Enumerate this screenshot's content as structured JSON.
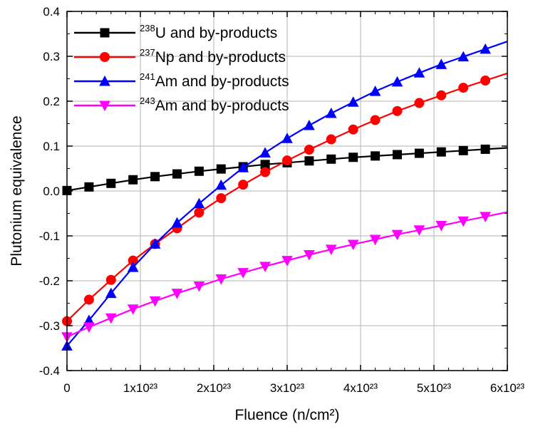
{
  "chart_data": {
    "type": "line",
    "title": "",
    "xlabel": "Fluence (n/cm²)",
    "ylabel": "Plutonium equivalence",
    "xlim": [
      0,
      6e+23
    ],
    "ylim": [
      -0.4,
      0.4
    ],
    "grid": true,
    "legend_position": "top-left",
    "x_ticks": [
      {
        "value": 0,
        "label": "0"
      },
      {
        "value": 1e+23,
        "label": "1x10²³"
      },
      {
        "value": 2e+23,
        "label": "2x10²³"
      },
      {
        "value": 3e+23,
        "label": "3x10²³"
      },
      {
        "value": 4e+23,
        "label": "4x10²³"
      },
      {
        "value": 5e+23,
        "label": "5x10²³"
      },
      {
        "value": 6e+23,
        "label": "6x10²³"
      }
    ],
    "y_ticks": [
      {
        "value": -0.4,
        "label": "-0.4"
      },
      {
        "value": -0.3,
        "label": "-0.3"
      },
      {
        "value": -0.2,
        "label": "-0.2"
      },
      {
        "value": -0.1,
        "label": "-0.1"
      },
      {
        "value": 0.0,
        "label": "0.0"
      },
      {
        "value": 0.1,
        "label": "0.1"
      },
      {
        "value": 0.2,
        "label": "0.2"
      },
      {
        "value": 0.3,
        "label": "0.3"
      },
      {
        "value": 0.4,
        "label": "0.4"
      }
    ],
    "x": [
      0,
      3e+22,
      6e+22,
      9e+22,
      1.2e+23,
      1.5e+23,
      1.8e+23,
      2.1e+23,
      2.4e+23,
      2.7e+23,
      3e+23,
      3.3e+23,
      3.6e+23,
      3.9e+23,
      4.2e+23,
      4.5e+23,
      4.8e+23,
      5.1e+23,
      5.4e+23,
      5.7e+23
    ],
    "series": [
      {
        "name": "²³⁸U and by-products",
        "sup": "238",
        "label_rest": "U and by-products",
        "color": "#000000",
        "marker": "square",
        "values": [
          0.001,
          0.009,
          0.017,
          0.025,
          0.032,
          0.038,
          0.044,
          0.049,
          0.054,
          0.059,
          0.063,
          0.067,
          0.071,
          0.075,
          0.078,
          0.081,
          0.084,
          0.087,
          0.09,
          0.093
        ]
      },
      {
        "name": "²³⁷Np and by-products",
        "sup": "237",
        "label_rest": "Np and by-products",
        "color": "#ff0000",
        "marker": "circle",
        "values": [
          -0.29,
          -0.242,
          -0.198,
          -0.155,
          -0.118,
          -0.083,
          -0.048,
          -0.016,
          0.014,
          0.042,
          0.068,
          0.092,
          0.115,
          0.137,
          0.158,
          0.178,
          0.196,
          0.213,
          0.23,
          0.246
        ]
      },
      {
        "name": "²⁴¹Am and by-products",
        "sup": "241",
        "label_rest": "Am and by-products",
        "color": "#0000ff",
        "marker": "triangle-up",
        "values": [
          -0.345,
          -0.288,
          -0.228,
          -0.17,
          -0.118,
          -0.071,
          -0.028,
          0.013,
          0.052,
          0.085,
          0.117,
          0.146,
          0.173,
          0.198,
          0.222,
          0.243,
          0.263,
          0.282,
          0.299,
          0.316
        ]
      },
      {
        "name": "²⁴³Am and by-products",
        "sup": "243",
        "label_rest": "Am and by-products",
        "color": "#ff00ff",
        "marker": "triangle-down",
        "values": [
          -0.325,
          -0.303,
          -0.283,
          -0.263,
          -0.245,
          -0.228,
          -0.212,
          -0.196,
          -0.182,
          -0.168,
          -0.155,
          -0.142,
          -0.13,
          -0.119,
          -0.108,
          -0.097,
          -0.087,
          -0.077,
          -0.067,
          -0.057
        ]
      }
    ]
  }
}
